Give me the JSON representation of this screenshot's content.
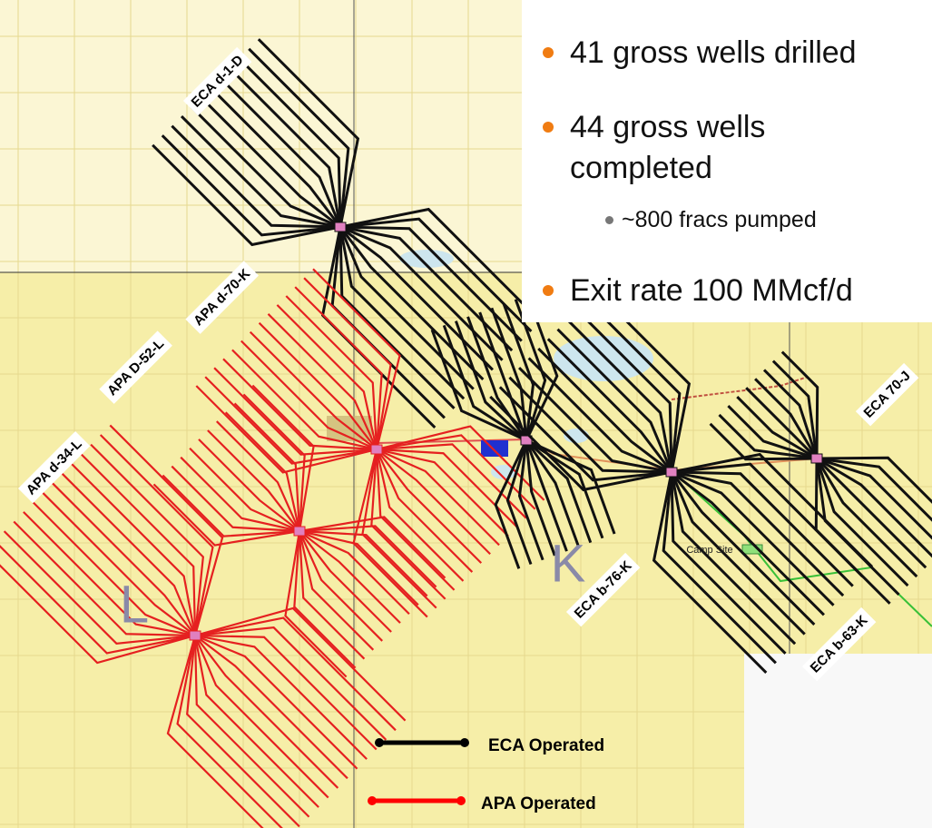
{
  "slide": {
    "bullets": [
      {
        "text": "41 gross wells drilled"
      },
      {
        "text": "44 gross wells completed",
        "sub_bullets": [
          "~800 fracs pumped"
        ]
      },
      {
        "text": "Exit rate 100 MMcf/d"
      }
    ]
  },
  "map": {
    "pads": [
      {
        "label": "ECA d-1-D"
      },
      {
        "label": "APA d-70-K"
      },
      {
        "label": "APA D-52-L"
      },
      {
        "label": "APA d-34-L"
      },
      {
        "label": "ECA b-76-K"
      },
      {
        "label": "ECA b-63-K"
      },
      {
        "label": "ECA 70-J"
      }
    ],
    "area_labels": [
      "L",
      "K"
    ],
    "site_label": "Camp Site"
  },
  "legend": [
    {
      "label": "ECA Operated"
    },
    {
      "label": "APA Operated"
    }
  ]
}
